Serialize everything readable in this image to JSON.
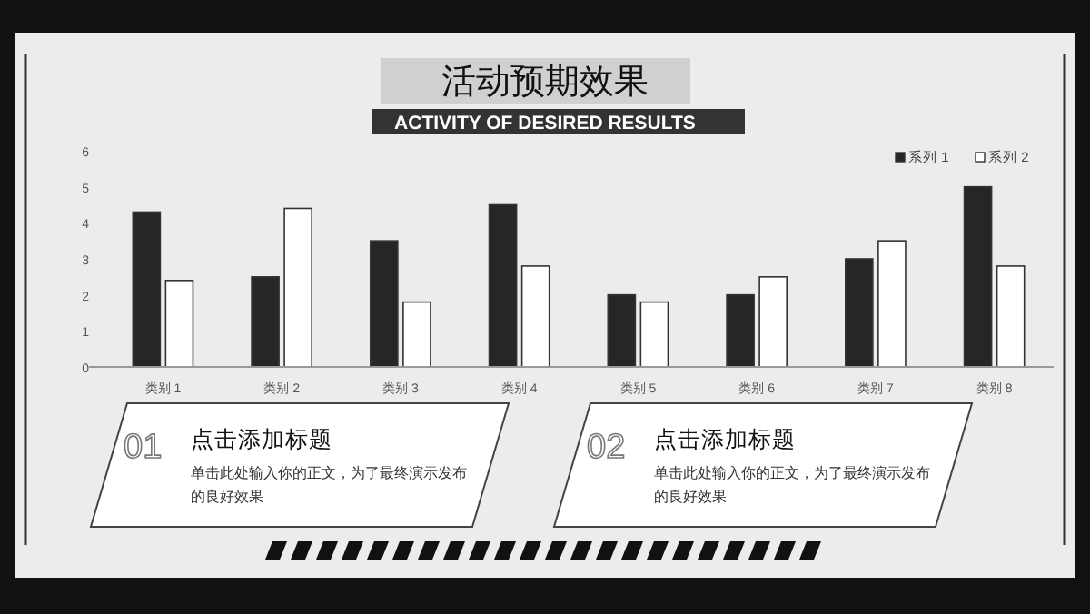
{
  "chart_data": {
    "type": "bar",
    "title": "活动预期效果",
    "subtitle": "ACTIVITY OF DESIRED RESULTS",
    "categories": [
      "类别 1",
      "类别 2",
      "类别 3",
      "类别 4",
      "类别 5",
      "类别 6",
      "类别 7",
      "类别 8"
    ],
    "series": [
      {
        "name": "系列 1",
        "color": "#262626",
        "values": [
          4.3,
          2.5,
          3.5,
          4.5,
          2,
          2,
          3,
          5
        ]
      },
      {
        "name": "系列 2",
        "color": "#ffffff",
        "values": [
          2.4,
          4.4,
          1.8,
          2.8,
          1.8,
          2.5,
          3.5,
          2.8
        ]
      }
    ],
    "ylim": [
      0,
      6
    ],
    "yticks": [
      0,
      1,
      2,
      3,
      4,
      5,
      6
    ],
    "grid": false,
    "legend": "top right",
    "annotations": [
      "01",
      "点击添加标题",
      "单击此处输入你的正文，为了最终演示发布的良好效果",
      "02",
      "点击添加标题",
      "单击此处输入你的正文，为了最终演示发布的良好效果"
    ]
  }
}
